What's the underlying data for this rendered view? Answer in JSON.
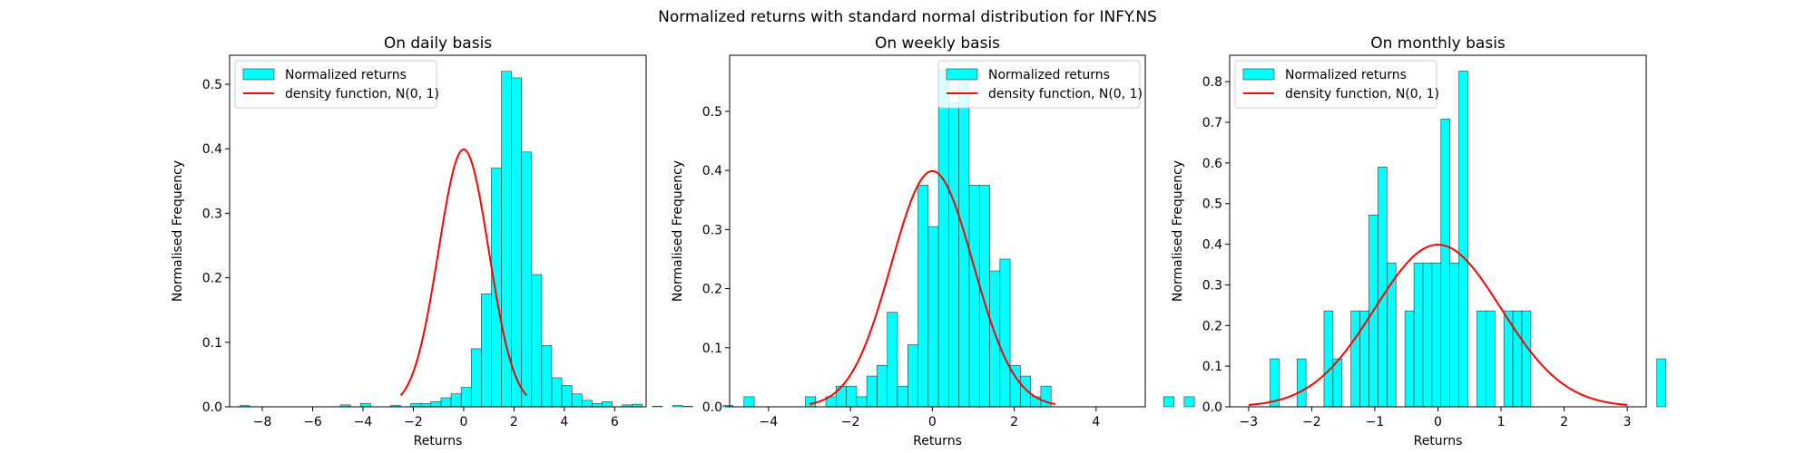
{
  "figure": {
    "title": "Normalized returns with standard normal distribution for INFY.NS"
  },
  "colors": {
    "bar_fill": "#00ffff",
    "bar_edge": "#333333",
    "density_line": "#ff0000"
  },
  "chart_data": [
    {
      "type": "bar",
      "title": "On daily basis",
      "xlabel": "Returns",
      "ylabel": "Normalised Frequency",
      "xlim": [
        -9.3,
        7.25
      ],
      "ylim": [
        0,
        0.545
      ],
      "xticks": [
        -8,
        -6,
        -4,
        -2,
        0,
        2,
        4,
        6
      ],
      "xtick_labels": [
        "−8",
        "−6",
        "−4",
        "−2",
        "0",
        "2",
        "4",
        "6"
      ],
      "yticks": [
        0.0,
        0.1,
        0.2,
        0.3,
        0.4,
        0.5
      ],
      "ytick_labels": [
        "0.0",
        "0.1",
        "0.2",
        "0.3",
        "0.4",
        "0.5"
      ],
      "legend": {
        "position": "upper left",
        "entries": [
          "Normalized returns",
          "density function, N(0, 1)"
        ]
      },
      "histogram": {
        "name": "Normalized returns",
        "bin_start": -8.9,
        "bin_width": 0.4,
        "values": [
          0.002,
          0,
          0,
          0,
          0,
          0,
          0,
          0,
          0,
          0,
          0.003,
          0,
          0.005,
          0,
          0,
          0.002,
          0,
          0.005,
          0.005,
          0.008,
          0.014,
          0.02,
          0.03,
          0.09,
          0.175,
          0.37,
          0.52,
          0.51,
          0.395,
          0.205,
          0.095,
          0.045,
          0.033,
          0.02,
          0.01,
          0.005,
          0.008,
          0,
          0.003,
          0.004,
          0,
          0.001,
          0,
          0.002,
          0.001,
          0,
          0,
          0,
          0.002
        ]
      },
      "density": {
        "name": "density function, N(0, 1)",
        "x_range": [
          -2.5,
          2.5
        ]
      }
    },
    {
      "type": "bar",
      "title": "On weekly basis",
      "xlabel": "Returns",
      "ylabel": "Normalised Frequency",
      "xlim": [
        -4.95,
        5.2
      ],
      "ylim": [
        0,
        0.595
      ],
      "xticks": [
        -4,
        -2,
        0,
        2,
        4
      ],
      "xtick_labels": [
        "−4",
        "−2",
        "0",
        "2",
        "4"
      ],
      "yticks": [
        0.0,
        0.1,
        0.2,
        0.3,
        0.4,
        0.5
      ],
      "ytick_labels": [
        "0.0",
        "0.1",
        "0.2",
        "0.3",
        "0.4",
        "0.5"
      ],
      "legend": {
        "position": "upper right",
        "entries": [
          "Normalized returns",
          "density function, N(0, 1)"
        ]
      },
      "histogram": {
        "name": "Normalized returns",
        "bin_start": -4.6,
        "bin_width": 0.25,
        "values": [
          0.017,
          0,
          0,
          0,
          0,
          0,
          0.017,
          0,
          0.017,
          0.035,
          0.035,
          0.017,
          0.052,
          0.07,
          0.16,
          0.035,
          0.105,
          0.375,
          0.305,
          0.57,
          0.515,
          0.55,
          0.375,
          0.375,
          0.23,
          0.25,
          0.07,
          0.052,
          0.017,
          0.035,
          0,
          0,
          0,
          0,
          0,
          0,
          0,
          0,
          0,
          0,
          0,
          0.017,
          0,
          0.017
        ]
      },
      "density": {
        "name": "density function, N(0, 1)",
        "x_range": [
          -3,
          3
        ]
      }
    },
    {
      "type": "bar",
      "title": "On monthly basis",
      "xlabel": "Returns",
      "ylabel": "Normalised Frequency",
      "xlim": [
        -3.3,
        3.3
      ],
      "ylim": [
        0,
        0.865
      ],
      "xticks": [
        -3,
        -2,
        -1,
        0,
        1,
        2,
        3
      ],
      "xtick_labels": [
        "−3",
        "−2",
        "−1",
        "0",
        "1",
        "2",
        "3"
      ],
      "yticks": [
        0.0,
        0.1,
        0.2,
        0.3,
        0.4,
        0.5,
        0.6,
        0.7,
        0.8
      ],
      "ytick_labels": [
        "0.0",
        "0.1",
        "0.2",
        "0.3",
        "0.4",
        "0.5",
        "0.6",
        "0.7",
        "0.8"
      ],
      "legend": {
        "position": "upper left",
        "entries": [
          "Normalized returns",
          "density function, N(0, 1)"
        ]
      },
      "histogram": {
        "name": "Normalized returns",
        "bin_start": -2.66,
        "bin_width": 0.1425,
        "values": [
          0.118,
          0,
          0,
          0.118,
          0,
          0,
          0.236,
          0.118,
          0,
          0.236,
          0.236,
          0.472,
          0.59,
          0.354,
          0,
          0.236,
          0.354,
          0.354,
          0.354,
          0.708,
          0.354,
          0.826,
          0,
          0.236,
          0.236,
          0,
          0.236,
          0.236,
          0.236,
          0,
          0,
          0,
          0,
          0,
          0,
          0,
          0,
          0,
          0,
          0,
          0,
          0,
          0,
          0.118
        ]
      },
      "density": {
        "name": "density function, N(0, 1)",
        "x_range": [
          -3,
          3
        ]
      }
    }
  ]
}
